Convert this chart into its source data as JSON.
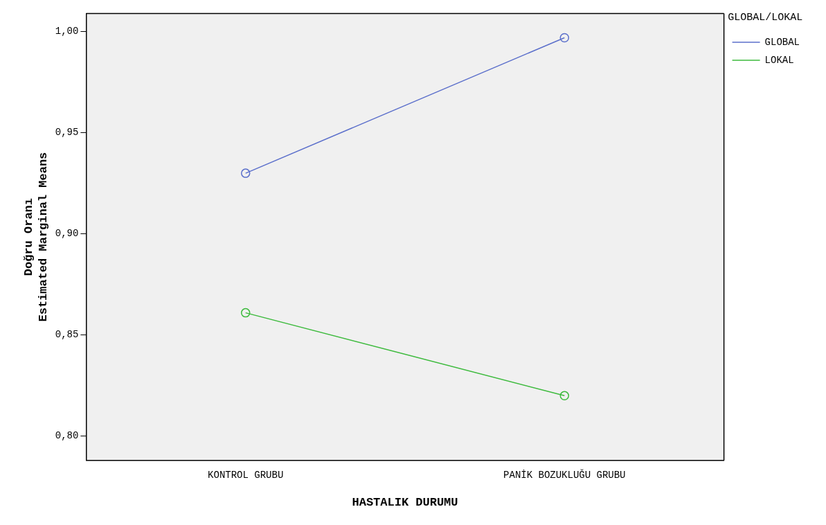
{
  "chart_data": {
    "type": "line",
    "xlabel": "HASTALIK DURUMU",
    "ylabel": "Doğru Oranı\nEstimated Marginal Means",
    "legend_title": "GLOBAL/LOKAL",
    "categories": [
      "KONTROL GRUBU",
      "PANİK BOZUKLUĞU GRUBU"
    ],
    "series": [
      {
        "name": "GLOBAL",
        "color": "#5b6fcb",
        "values": [
          0.93,
          0.997
        ]
      },
      {
        "name": "LOKAL",
        "color": "#3cba3c",
        "values": [
          0.861,
          0.82
        ]
      }
    ],
    "ylim": [
      0.788,
      1.009
    ],
    "yticks": [
      {
        "value": 0.8,
        "label": "0,80"
      },
      {
        "value": 0.85,
        "label": "0,85"
      },
      {
        "value": 0.9,
        "label": "0,90"
      },
      {
        "value": 0.95,
        "label": "0,95"
      },
      {
        "value": 1.0,
        "label": "1,00"
      }
    ],
    "grid": false,
    "legend": "top right",
    "marker": "circle",
    "line_style": "solid"
  }
}
